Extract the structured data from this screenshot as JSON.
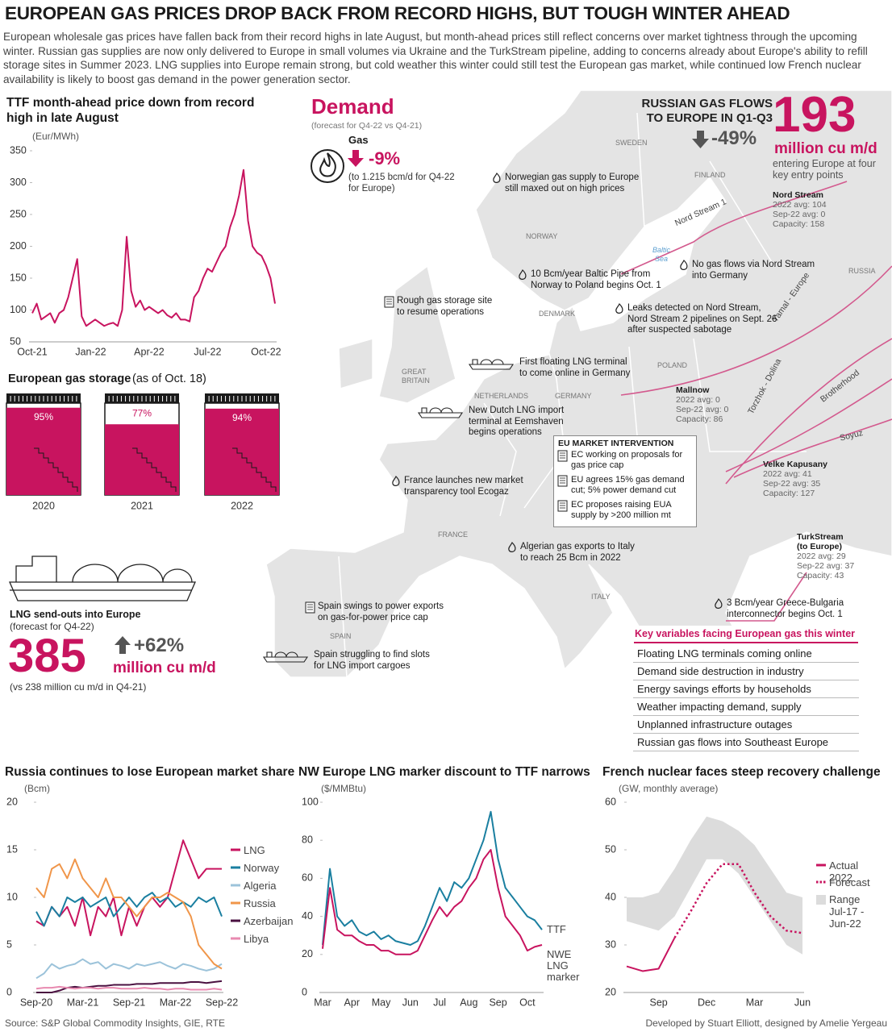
{
  "header": {
    "title": "EUROPEAN GAS PRICES DROP BACK FROM RECORD HIGHS, BUT TOUGH WINTER AHEAD",
    "intro": "European wholesale gas prices have fallen back from their record highs in late August, but month-ahead prices still reflect concerns over market tightness through the upcoming winter. Russian gas supplies are now only delivered to Europe in small volumes via Ukraine and the TurkStream pipeline, adding to concerns already about Europe's ability to refill storage sites in Summer 2023. LNG supplies into Europe remain strong, but cold weather this winter could still test the European gas market, while continued low French nuclear availability is likely to boost gas demand in the power generation sector."
  },
  "chart_data": [
    {
      "type": "line",
      "title": "TTF month-ahead price down from record high in late August",
      "y_label": "(Eur/MWh)",
      "color": "#c8145f",
      "categories": [
        "Oct-21",
        null,
        null,
        null,
        null,
        null,
        null,
        null,
        null,
        null,
        null,
        null,
        null,
        "Jan-22",
        null,
        null,
        null,
        null,
        null,
        null,
        null,
        null,
        null,
        null,
        null,
        null,
        "Apr-22",
        null,
        null,
        null,
        null,
        null,
        null,
        null,
        null,
        null,
        null,
        null,
        null,
        "Jul-22",
        null,
        null,
        null,
        null,
        null,
        null,
        null,
        null,
        null,
        null,
        null,
        null,
        "Oct-22",
        null,
        null
      ],
      "values": [
        95,
        110,
        85,
        90,
        95,
        80,
        95,
        100,
        120,
        150,
        180,
        90,
        75,
        80,
        85,
        80,
        75,
        78,
        80,
        75,
        100,
        215,
        130,
        105,
        115,
        100,
        105,
        100,
        95,
        100,
        92,
        88,
        95,
        85,
        85,
        82,
        120,
        130,
        150,
        165,
        160,
        175,
        190,
        200,
        230,
        250,
        280,
        320,
        240,
        200,
        190,
        185,
        170,
        150,
        110
      ],
      "ylim": [
        50,
        350
      ],
      "yticks": [
        50,
        100,
        150,
        200,
        250,
        300,
        350
      ],
      "grid": false
    },
    {
      "type": "tank",
      "title": "European gas storage",
      "subtitle": "(as of Oct. 18)",
      "color": "#c8145f",
      "categories": [
        "2020",
        "2021",
        "2022"
      ],
      "values": [
        95,
        77,
        94
      ],
      "value_labels": [
        "95%",
        "77%",
        "94%"
      ]
    },
    {
      "type": "line",
      "title": "Russia continues to lose European market share",
      "y_label": "(Bcm)",
      "legend": "right",
      "categories": [
        "Sep-20",
        null,
        null,
        null,
        null,
        null,
        "Mar-21",
        null,
        null,
        null,
        null,
        null,
        "Sep-21",
        null,
        null,
        null,
        null,
        null,
        "Mar-22",
        null,
        null,
        null,
        null,
        null,
        "Sep-22"
      ],
      "series": [
        {
          "name": "LNG",
          "color": "#c8145f",
          "values": [
            7.5,
            7,
            9,
            8,
            9,
            7,
            10,
            6,
            9,
            8,
            10,
            6,
            9,
            7,
            9,
            10,
            9,
            10,
            13,
            16,
            14,
            12,
            13,
            13,
            13
          ]
        },
        {
          "name": "Norway",
          "color": "#1a7fa0",
          "values": [
            8.5,
            7,
            9,
            8,
            10,
            9.5,
            10,
            9,
            9.5,
            10,
            8,
            9,
            10,
            9,
            10,
            10.5,
            9.5,
            10,
            9,
            9.5,
            9,
            10,
            9.5,
            10,
            8
          ]
        },
        {
          "name": "Algeria",
          "color": "#9cc3da",
          "values": [
            1.5,
            2,
            3,
            2.5,
            2.8,
            3,
            3.5,
            3,
            3.2,
            2.5,
            3,
            2.8,
            2.5,
            3,
            2.8,
            3,
            3.2,
            2.8,
            2.5,
            3,
            2.8,
            2.5,
            2.3,
            2.5,
            3
          ]
        },
        {
          "name": "Russia",
          "color": "#f0964a",
          "values": [
            11,
            10,
            13,
            13.5,
            12,
            14,
            12,
            11,
            10,
            12,
            10,
            10,
            9,
            8,
            9,
            10,
            10,
            10.5,
            10,
            9.5,
            8,
            5,
            4,
            3,
            2.5
          ]
        },
        {
          "name": "Azerbaijan",
          "color": "#4a1040",
          "values": [
            0,
            0,
            0,
            0.2,
            0.5,
            0.6,
            0.5,
            0.6,
            0.7,
            0.7,
            0.8,
            0.8,
            0.8,
            0.9,
            0.9,
            0.9,
            1,
            1,
            1,
            1,
            1.1,
            1.1,
            1,
            1.1,
            1.2
          ]
        },
        {
          "name": "Libya",
          "color": "#e88ab0",
          "values": [
            0.4,
            0.5,
            0.5,
            0.6,
            0.5,
            0.4,
            0.5,
            0.5,
            0.4,
            0.5,
            0.5,
            0.4,
            0.4,
            0.4,
            0.5,
            0.4,
            0.4,
            0.3,
            0.4,
            0.4,
            0.3,
            0.3,
            0.3,
            0.4,
            0.3
          ]
        }
      ],
      "ylim": [
        0,
        20
      ],
      "yticks": [
        0,
        5,
        10,
        15,
        20
      ],
      "grid": false
    },
    {
      "type": "line",
      "title": "NW Europe LNG marker discount to TTF narrows",
      "y_label": "($/MMBtu)",
      "legend": "line-end",
      "categories": [
        "Mar",
        null,
        null,
        null,
        "Apr",
        null,
        null,
        null,
        "May",
        null,
        null,
        null,
        "Jun",
        null,
        null,
        null,
        "Jul",
        null,
        null,
        null,
        "Aug",
        null,
        null,
        null,
        "Sep",
        null,
        null,
        null,
        "Oct",
        null,
        null
      ],
      "series": [
        {
          "name": "TTF",
          "color": "#1a7fa0",
          "values": [
            25,
            65,
            40,
            35,
            38,
            32,
            30,
            32,
            28,
            30,
            27,
            26,
            25,
            27,
            35,
            45,
            55,
            48,
            58,
            55,
            60,
            70,
            80,
            95,
            70,
            55,
            50,
            45,
            40,
            38,
            33
          ]
        },
        {
          "name": "NWE LNG marker",
          "color": "#c8145f",
          "values": [
            23,
            55,
            33,
            30,
            30,
            27,
            25,
            25,
            22,
            22,
            20,
            20,
            20,
            22,
            30,
            38,
            45,
            40,
            45,
            48,
            55,
            60,
            70,
            75,
            55,
            40,
            35,
            30,
            22,
            24,
            25
          ]
        }
      ],
      "ylim": [
        0,
        100
      ],
      "yticks": [
        0,
        20,
        40,
        60,
        80,
        100
      ],
      "grid": false
    },
    {
      "type": "line",
      "title": "French nuclear faces steep recovery challenge",
      "y_label": "(GW, monthly average)",
      "legend": "right",
      "categories": [
        null,
        null,
        "Sep",
        null,
        null,
        "Dec",
        null,
        null,
        "Mar",
        null,
        null,
        "Jun"
      ],
      "series": [
        {
          "name": "Actual 2022",
          "color": "#c8145f",
          "values": [
            25.5,
            24.5,
            25,
            31.5,
            null,
            null,
            null,
            null,
            null,
            null,
            null,
            null
          ]
        },
        {
          "name": "Forecast",
          "color": "#c8145f",
          "dash": true,
          "values": [
            null,
            null,
            null,
            31.5,
            37,
            43,
            47,
            47,
            41,
            36,
            33,
            32.5
          ]
        },
        {
          "name": "Range Jul-17 - Jun-22",
          "color": "#dcdcdc",
          "low": [
            35,
            34,
            33,
            36,
            42,
            48,
            48,
            45,
            40,
            35,
            30,
            28
          ],
          "high": [
            40,
            40,
            41,
            46,
            52,
            57,
            56,
            54,
            51,
            46,
            41,
            40
          ]
        }
      ],
      "ylim": [
        20,
        60
      ],
      "yticks": [
        20,
        30,
        40,
        50,
        60
      ],
      "grid": false
    }
  ],
  "demand": {
    "title": "Demand",
    "subtitle": "(forecast for Q4-22 vs Q4-21)",
    "label": "Gas",
    "change": "-9%",
    "note": "(to 1.215 bcm/d for Q4-22 for Europe)"
  },
  "russian_flows": {
    "title": "RUSSIAN GAS FLOWS TO EUROPE IN Q1-Q3",
    "change": "-49%",
    "value": "193",
    "unit": "million cu m/d",
    "note": "entering Europe at four key entry points"
  },
  "entry_points": [
    {
      "name": "Nord Stream",
      "lines": [
        "2022 avg: 104",
        "Sep-22 avg: 0",
        "Capacity: 158"
      ]
    },
    {
      "name": "Mallnow",
      "lines": [
        "2022 avg: 0",
        "Sep-22 avg: 0",
        "Capacity: 86"
      ]
    },
    {
      "name": "Velke Kapusany",
      "lines": [
        "2022 avg: 41",
        "Sep-22 avg: 35",
        "Capacity: 127"
      ]
    },
    {
      "name": "TurkStream (to Europe)",
      "lines": [
        "2022 avg: 29",
        "Sep-22 avg: 37",
        "Capacity: 43"
      ]
    }
  ],
  "lng": {
    "title": "LNG send-outs into Europe",
    "subtitle": "(forecast for Q4-22)",
    "value": "385",
    "change": "+62%",
    "unit": "million cu m/d",
    "note": "(vs 238 million cu m/d in Q4-21)"
  },
  "map": {
    "countries": [
      "SWEDEN",
      "FINLAND",
      "NORWAY",
      "DENMARK",
      "GREAT BRITAIN",
      "NETHERLANDS",
      "GERMANY",
      "POLAND",
      "RUSSIA",
      "FRANCE",
      "SPAIN",
      "ITALY"
    ],
    "sea": "Baltic Sea",
    "pipelines": [
      "Nord Stream 1",
      "Yamal - Europe",
      "Torzhok - Dolina",
      "Brotherhood",
      "Soyuz"
    ],
    "annotations": [
      "Norwegian gas supply to Europe still maxed out on high prices",
      "10 Bcm/year Baltic Pipe from Norway to Poland begins Oct. 1",
      "No gas flows via Nord Stream into Germany",
      "Rough gas storage site to resume operations",
      "Leaks detected on Nord Stream, Nord Stream 2 pipelines on Sept. 26 after suspected sabotage",
      "First floating LNG terminal to come online in Germany",
      "New Dutch LNG import terminal at Eemshaven begins operations",
      "France launches new market transparency tool Ecogaz",
      "Algerian gas exports to Italy to reach 25 Bcm in 2022",
      "Spain swings to power exports on gas-for-power price cap",
      "Spain struggling to find slots for LNG import cargoes",
      "3 Bcm/year Greece-Bulgaria interconnector begins Oct. 1"
    ]
  },
  "eu_intervention": {
    "title": "EU MARKET INTERVENTION",
    "items": [
      "EC working on proposals for gas price cap",
      "EU agrees 15% gas demand cut; 5% power demand cut",
      "EC proposes raising EUA supply by >200 million mt"
    ]
  },
  "key_variables": {
    "title": "Key variables facing European gas this winter",
    "items": [
      "Floating LNG terminals coming online",
      "Demand side destruction in industry",
      "Energy savings efforts by households",
      "Weather impacting demand, supply",
      "Unplanned infrastructure outages",
      "Russian gas flows into Southeast Europe"
    ]
  },
  "footer": {
    "source": "Source: S&P Global Commodity Insights, GIE, RTE",
    "credit": "Developed by Stuart Elliott, designed by Amelie Yergeau"
  }
}
